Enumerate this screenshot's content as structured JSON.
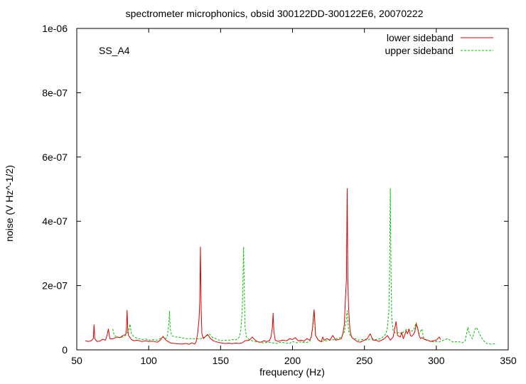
{
  "chart_data": {
    "type": "line",
    "title": "spectrometer microphonics, obsid 300122DD-300122E6, 20070222",
    "xlabel": "frequency (Hz)",
    "ylabel": "noise (V Hz^-1/2)",
    "annotation": "SS_A4",
    "xlim": [
      50,
      350
    ],
    "ylim": [
      0,
      1e-06
    ],
    "x_ticks": [
      50,
      100,
      150,
      200,
      250,
      300,
      350
    ],
    "x_tick_labels": [
      "50",
      "100",
      "150",
      "200",
      "250",
      "300",
      "350"
    ],
    "y_ticks": [
      0,
      2e-07,
      4e-07,
      6e-07,
      8e-07,
      1e-06
    ],
    "y_tick_labels": [
      "0",
      "2e-07",
      "4e-07",
      "6e-07",
      "8e-07",
      "1e-06"
    ],
    "grid": false,
    "legend_position": "top-right",
    "series": [
      {
        "name": "lower sideband",
        "color": "#e00000",
        "dash": "solid",
        "points": [
          [
            56,
            2.8e-08
          ],
          [
            58,
            2.6e-08
          ],
          [
            60,
            2.8e-08
          ],
          [
            61.5,
            3.5e-08
          ],
          [
            62,
            7.8e-08
          ],
          [
            62.5,
            3.5e-08
          ],
          [
            64,
            2.6e-08
          ],
          [
            66,
            2.7e-08
          ],
          [
            68,
            3.3e-08
          ],
          [
            70,
            3e-08
          ],
          [
            71,
            4.5e-08
          ],
          [
            72,
            6.5e-08
          ],
          [
            73,
            3.5e-08
          ],
          [
            75,
            3.4e-08
          ],
          [
            78,
            4e-08
          ],
          [
            80,
            3.8e-08
          ],
          [
            82,
            4.4e-08
          ],
          [
            84,
            4.8e-08
          ],
          [
            84.5,
            6e-08
          ],
          [
            85,
            1.23e-07
          ],
          [
            85.5,
            6e-08
          ],
          [
            86,
            4.5e-08
          ],
          [
            88,
            3.2e-08
          ],
          [
            90,
            2.8e-08
          ],
          [
            92,
            3e-08
          ],
          [
            95,
            2.6e-08
          ],
          [
            98,
            2.8e-08
          ],
          [
            100,
            2.6e-08
          ],
          [
            103,
            2.7e-08
          ],
          [
            106,
            2.4e-08
          ],
          [
            108,
            3e-08
          ],
          [
            110,
            4.2e-08
          ],
          [
            112,
            3e-08
          ],
          [
            115,
            2.2e-08
          ],
          [
            118,
            2e-08
          ],
          [
            120,
            1.9e-08
          ],
          [
            123,
            1.8e-08
          ],
          [
            126,
            2e-08
          ],
          [
            128,
            1.7e-08
          ],
          [
            130,
            2.2e-08
          ],
          [
            132,
            1.8e-08
          ],
          [
            133,
            2.5e-08
          ],
          [
            134,
            5e-08
          ],
          [
            135,
            9.5e-08
          ],
          [
            135.5,
            1.5e-07
          ],
          [
            136,
            3.2e-07
          ],
          [
            136.5,
            1.3e-07
          ],
          [
            137,
            5e-08
          ],
          [
            138,
            3.5e-08
          ],
          [
            140,
            4.4e-08
          ],
          [
            141,
            4.8e-08
          ],
          [
            143,
            3.5e-08
          ],
          [
            145,
            2.8e-08
          ],
          [
            148,
            2.4e-08
          ],
          [
            150,
            2.2e-08
          ],
          [
            153,
            2e-08
          ],
          [
            156,
            2.1e-08
          ],
          [
            158,
            1.9e-08
          ],
          [
            160,
            2.1e-08
          ],
          [
            163,
            2e-08
          ],
          [
            165,
            2.2e-08
          ],
          [
            167,
            2.8e-08
          ],
          [
            170,
            3e-08
          ],
          [
            172,
            4e-08
          ],
          [
            174,
            3e-08
          ],
          [
            176,
            2.5e-08
          ],
          [
            178,
            2.4e-08
          ],
          [
            180,
            2.8e-08
          ],
          [
            182,
            2.6e-08
          ],
          [
            184,
            2.8e-08
          ],
          [
            185,
            4e-08
          ],
          [
            186,
            7e-08
          ],
          [
            186.5,
            1.14e-07
          ],
          [
            187,
            6e-08
          ],
          [
            188,
            3e-08
          ],
          [
            190,
            2.6e-08
          ],
          [
            193,
            3e-08
          ],
          [
            196,
            2.8e-08
          ],
          [
            198,
            3.5e-08
          ],
          [
            200,
            3.2e-08
          ],
          [
            202,
            3.8e-08
          ],
          [
            204,
            2.8e-08
          ],
          [
            206,
            3e-08
          ],
          [
            208,
            2.7e-08
          ],
          [
            210,
            3.5e-08
          ],
          [
            212,
            3e-08
          ],
          [
            213,
            4e-08
          ],
          [
            214,
            7e-08
          ],
          [
            214.5,
            1e-07
          ],
          [
            215,
            1.25e-07
          ],
          [
            215.5,
            9e-08
          ],
          [
            216,
            4.5e-08
          ],
          [
            218,
            3e-08
          ],
          [
            220,
            2.5e-08
          ],
          [
            221,
            4e-08
          ],
          [
            222,
            3e-08
          ],
          [
            224,
            3.5e-08
          ],
          [
            226,
            3e-08
          ],
          [
            228,
            4.5e-08
          ],
          [
            230,
            3e-08
          ],
          [
            232,
            3.2e-08
          ],
          [
            234,
            3.5e-08
          ],
          [
            235,
            5e-08
          ],
          [
            236,
            7.5e-08
          ],
          [
            237,
            1.8e-07
          ],
          [
            237.5,
            2.2e-07
          ],
          [
            238,
            5.02e-07
          ],
          [
            238.5,
            2.2e-07
          ],
          [
            239,
            1.3e-07
          ],
          [
            240,
            6e-08
          ],
          [
            241,
            4e-08
          ],
          [
            243,
            3.2e-08
          ],
          [
            245,
            2.6e-08
          ],
          [
            247,
            2.4e-08
          ],
          [
            250,
            3e-08
          ],
          [
            252,
            3.5e-08
          ],
          [
            254,
            5e-08
          ],
          [
            256,
            3e-08
          ],
          [
            258,
            3e-08
          ],
          [
            260,
            2.6e-08
          ],
          [
            262,
            3e-08
          ],
          [
            264,
            3.5e-08
          ],
          [
            266,
            4.5e-08
          ],
          [
            268,
            3e-08
          ],
          [
            270,
            4e-08
          ],
          [
            271,
            6.5e-08
          ],
          [
            272,
            8.8e-08
          ],
          [
            273,
            4.5e-08
          ],
          [
            275,
            4e-08
          ],
          [
            276,
            5.5e-08
          ],
          [
            277,
            3.5e-08
          ],
          [
            278,
            4.5e-08
          ],
          [
            279,
            6e-08
          ],
          [
            280,
            5e-08
          ],
          [
            281,
            6.5e-08
          ],
          [
            282,
            4.5e-08
          ],
          [
            283,
            4.2e-08
          ],
          [
            284,
            4.8e-08
          ],
          [
            285,
            5.5e-08
          ],
          [
            286,
            8e-08
          ],
          [
            287,
            7e-08
          ],
          [
            288,
            4.5e-08
          ],
          [
            289,
            3.5e-08
          ],
          [
            290,
            3.8e-08
          ],
          [
            292,
            3.2e-08
          ],
          [
            294,
            3e-08
          ],
          [
            296,
            2.6e-08
          ],
          [
            298,
            2.8e-08
          ],
          [
            300,
            3e-08
          ],
          [
            302,
            4e-08
          ],
          [
            303,
            3.2e-08
          ]
        ]
      },
      {
        "name": "upper sideband",
        "color": "#00c000",
        "dash": "dashed",
        "points": [
          [
            75,
            6.5e-08
          ],
          [
            76,
            4.5e-08
          ],
          [
            78,
            4e-08
          ],
          [
            80,
            3.8e-08
          ],
          [
            82,
            4e-08
          ],
          [
            84,
            4.5e-08
          ],
          [
            86,
            6e-08
          ],
          [
            87,
            8e-08
          ],
          [
            88,
            5e-08
          ],
          [
            90,
            4e-08
          ],
          [
            92,
            3.6e-08
          ],
          [
            95,
            3.2e-08
          ],
          [
            98,
            3.4e-08
          ],
          [
            100,
            3e-08
          ],
          [
            103,
            3.2e-08
          ],
          [
            106,
            3e-08
          ],
          [
            108,
            3.5e-08
          ],
          [
            110,
            4e-08
          ],
          [
            112,
            3.5e-08
          ],
          [
            113,
            4.5e-08
          ],
          [
            114,
            8e-08
          ],
          [
            114.5,
            1.2e-07
          ],
          [
            115,
            6.5e-08
          ],
          [
            116,
            4.5e-08
          ],
          [
            118,
            4e-08
          ],
          [
            120,
            4e-08
          ],
          [
            123,
            3.8e-08
          ],
          [
            126,
            3.5e-08
          ],
          [
            130,
            3.5e-08
          ],
          [
            133,
            3.4e-08
          ],
          [
            136,
            3.5e-08
          ],
          [
            138,
            3.8e-08
          ],
          [
            140,
            4.2e-08
          ],
          [
            142,
            5e-08
          ],
          [
            144,
            4e-08
          ],
          [
            146,
            3.6e-08
          ],
          [
            148,
            3.2e-08
          ],
          [
            150,
            2.8e-08
          ],
          [
            153,
            3e-08
          ],
          [
            156,
            3e-08
          ],
          [
            158,
            3.2e-08
          ],
          [
            160,
            3e-08
          ],
          [
            162,
            3.5e-08
          ],
          [
            163,
            4e-08
          ],
          [
            164,
            6e-08
          ],
          [
            165,
            1.2e-07
          ],
          [
            165.5,
            2e-07
          ],
          [
            166,
            3.21e-07
          ],
          [
            166.5,
            1.8e-07
          ],
          [
            167,
            7e-08
          ],
          [
            168,
            4e-08
          ],
          [
            170,
            3.2e-08
          ],
          [
            172,
            2.8e-08
          ],
          [
            175,
            2.5e-08
          ],
          [
            178,
            2.3e-08
          ],
          [
            180,
            2.2e-08
          ],
          [
            183,
            2.4e-08
          ],
          [
            186,
            2.2e-08
          ],
          [
            189,
            2e-08
          ],
          [
            192,
            2.4e-08
          ],
          [
            195,
            2.2e-08
          ],
          [
            198,
            2e-08
          ],
          [
            200,
            2.6e-08
          ],
          [
            203,
            2.2e-08
          ],
          [
            206,
            2.5e-08
          ],
          [
            209,
            2.2e-08
          ],
          [
            212,
            2.6e-08
          ],
          [
            213,
            4e-08
          ],
          [
            214,
            6.5e-08
          ],
          [
            214.5,
            9.5e-08
          ],
          [
            215,
            1.2e-07
          ],
          [
            215.5,
            8.5e-08
          ],
          [
            216,
            4.5e-08
          ],
          [
            218,
            3e-08
          ],
          [
            220,
            2.6e-08
          ],
          [
            223,
            2.8e-08
          ],
          [
            226,
            3e-08
          ],
          [
            229,
            3.2e-08
          ],
          [
            232,
            3.6e-08
          ],
          [
            234,
            4e-08
          ],
          [
            236,
            5.5e-08
          ],
          [
            237,
            8e-08
          ],
          [
            238,
            1.22e-07
          ],
          [
            238.5,
            9e-08
          ],
          [
            239,
            6e-08
          ],
          [
            240,
            4.5e-08
          ],
          [
            242,
            3.6e-08
          ],
          [
            244,
            3.4e-08
          ],
          [
            246,
            3e-08
          ],
          [
            249,
            3.2e-08
          ],
          [
            252,
            3e-08
          ],
          [
            255,
            3.5e-08
          ],
          [
            258,
            3.2e-08
          ],
          [
            261,
            3.5e-08
          ],
          [
            263,
            4e-08
          ],
          [
            265,
            5e-08
          ],
          [
            266,
            7e-08
          ],
          [
            267,
            1.2e-07
          ],
          [
            267.5,
            2.5e-07
          ],
          [
            268,
            5.02e-07
          ],
          [
            268.5,
            2.5e-07
          ],
          [
            269,
            1e-07
          ],
          [
            270,
            6e-08
          ],
          [
            272,
            5e-08
          ],
          [
            274,
            5.5e-08
          ],
          [
            276,
            5e-08
          ],
          [
            278,
            6e-08
          ],
          [
            280,
            6.5e-08
          ],
          [
            282,
            5.8e-08
          ],
          [
            284,
            6e-08
          ],
          [
            286,
            8.5e-08
          ],
          [
            287,
            6.5e-08
          ],
          [
            288,
            5e-08
          ],
          [
            290,
            6.5e-08
          ],
          [
            291,
            4e-08
          ],
          [
            293,
            3e-08
          ],
          [
            295,
            2.8e-08
          ],
          [
            298,
            2.5e-08
          ],
          [
            300,
            2.6e-08
          ],
          [
            302,
            2.5e-08
          ],
          [
            305,
            3e-08
          ],
          [
            308,
            3.5e-08
          ],
          [
            310,
            2.8e-08
          ],
          [
            312,
            2.4e-08
          ],
          [
            315,
            2.6e-08
          ],
          [
            318,
            2.2e-08
          ],
          [
            320,
            2.8e-08
          ],
          [
            322,
            7e-08
          ],
          [
            323,
            5e-08
          ],
          [
            325,
            3.5e-08
          ],
          [
            327,
            6.5e-08
          ],
          [
            328,
            7e-08
          ],
          [
            329,
            6e-08
          ],
          [
            331,
            4e-08
          ],
          [
            333,
            2.8e-08
          ],
          [
            335,
            2e-08
          ],
          [
            338,
            1.8e-08
          ],
          [
            341,
            1.9e-08
          ]
        ]
      }
    ]
  }
}
